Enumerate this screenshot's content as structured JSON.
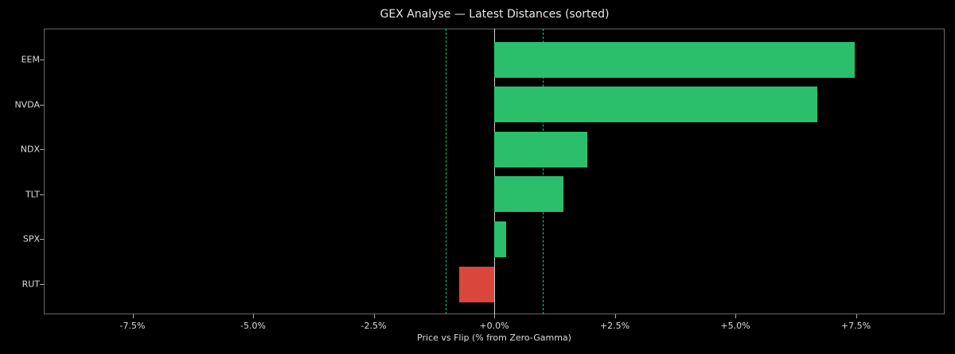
{
  "chart_data": {
    "type": "bar",
    "orientation": "horizontal",
    "title": "GEX Analyse — Latest Distances (sorted)",
    "xlabel": "Price vs Flip (% from Zero-Gamma)",
    "ylabel": "",
    "categories": [
      "EEM",
      "NVDA",
      "NDX",
      "TLT",
      "SPX",
      "RUT"
    ],
    "values": [
      7.47,
      6.7,
      1.93,
      1.44,
      0.25,
      -0.73
    ],
    "colors": [
      "#2bbf6b",
      "#2bbf6b",
      "#2bbf6b",
      "#2bbf6b",
      "#2bbf6b",
      "#d9463b"
    ],
    "xlim": [
      -9.3,
      9.4
    ],
    "xticks": [
      -7.5,
      -5.0,
      -2.5,
      0.0,
      2.5,
      5.0,
      7.5
    ],
    "xtick_labels": [
      "-7.5%",
      "-5.0%",
      "-2.5%",
      "+0.0%",
      "+2.5%",
      "+5.0%",
      "+7.5%"
    ],
    "reference_lines": [
      {
        "x": 0.0,
        "style": "solid",
        "color": "#cccccc"
      },
      {
        "x": -1.0,
        "style": "dashed",
        "color": "#1fbf73"
      },
      {
        "x": 1.0,
        "style": "dashed",
        "color": "#1fbf73"
      }
    ],
    "grid": false,
    "legend": null
  }
}
